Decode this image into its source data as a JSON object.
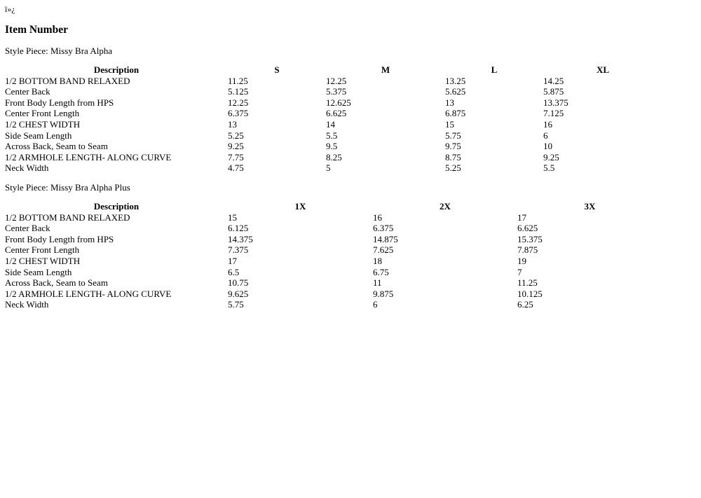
{
  "bom_text": "ï»¿",
  "title": "Item Number",
  "tables": [
    {
      "style_piece": "Style Piece: Missy Bra Alpha",
      "headers": [
        "Description",
        "S",
        "M",
        "L",
        "XL"
      ],
      "rows": [
        [
          "1/2 BOTTOM BAND RELAXED",
          "11.25",
          "12.25",
          "13.25",
          "14.25"
        ],
        [
          "Center Back",
          "5.125",
          "5.375",
          "5.625",
          "5.875"
        ],
        [
          "Front Body Length from HPS",
          "12.25",
          "12.625",
          "13",
          "13.375"
        ],
        [
          "Center Front Length",
          "6.375",
          "6.625",
          "6.875",
          "7.125"
        ],
        [
          "1/2 CHEST WIDTH",
          "13",
          "14",
          "15",
          "16"
        ],
        [
          "Side Seam Length",
          "5.25",
          "5.5",
          "5.75",
          "6"
        ],
        [
          "Across Back, Seam to Seam",
          "9.25",
          "9.5",
          "9.75",
          "10"
        ],
        [
          "1/2 ARMHOLE LENGTH- ALONG CURVE",
          "7.75",
          "8.25",
          "8.75",
          "9.25"
        ],
        [
          "Neck Width",
          "4.75",
          "5",
          "5.25",
          "5.5"
        ]
      ]
    },
    {
      "style_piece": "Style Piece: Missy Bra Alpha Plus",
      "headers": [
        "Description",
        "1X",
        "2X",
        "3X"
      ],
      "rows": [
        [
          "1/2 BOTTOM BAND RELAXED",
          "15",
          "16",
          "17"
        ],
        [
          "Center Back",
          "6.125",
          "6.375",
          "6.625"
        ],
        [
          "Front Body Length from HPS",
          "14.375",
          "14.875",
          "15.375"
        ],
        [
          "Center Front Length",
          "7.375",
          "7.625",
          "7.875"
        ],
        [
          "1/2 CHEST WIDTH",
          "17",
          "18",
          "19"
        ],
        [
          "Side Seam Length",
          "6.5",
          "6.75",
          "7"
        ],
        [
          "Across Back, Seam to Seam",
          "10.75",
          "11",
          "11.25"
        ],
        [
          "1/2 ARMHOLE LENGTH- ALONG CURVE",
          "9.625",
          "9.875",
          "10.125"
        ],
        [
          "Neck Width",
          "5.75",
          "6",
          "6.25"
        ]
      ]
    }
  ]
}
